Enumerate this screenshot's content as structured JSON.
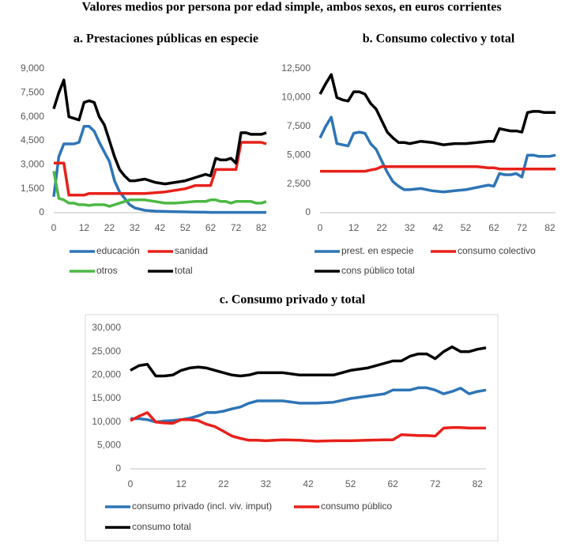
{
  "title": "Valores medios por persona por edad simple, ambos sexos, en euros corrientes",
  "chart_data": [
    {
      "type": "line",
      "title": "a. Prestaciones públicas en especie",
      "x": [
        0,
        2,
        4,
        6,
        8,
        10,
        12,
        14,
        16,
        18,
        20,
        22,
        24,
        26,
        28,
        30,
        32,
        36,
        40,
        44,
        48,
        52,
        56,
        60,
        62,
        64,
        66,
        68,
        70,
        72,
        74,
        76,
        78,
        80,
        82,
        84
      ],
      "xlim": [
        0,
        84
      ],
      "xticks": [
        0,
        12,
        22,
        32,
        42,
        52,
        62,
        72,
        82
      ],
      "ylim": [
        0,
        9000
      ],
      "yticks": [
        0,
        {
          "value": 1500,
          "label": "1,500"
        },
        {
          "value": 3000,
          "label": "3,000"
        },
        {
          "value": 4500,
          "label": "4,500"
        },
        {
          "value": 6000,
          "label": "6,000"
        },
        {
          "value": 7500,
          "label": "7,500"
        },
        {
          "value": 9000,
          "label": "9,000"
        }
      ],
      "grid": false,
      "series": [
        {
          "name": "educación",
          "color": "#2e75b6",
          "values": [
            1000,
            3500,
            4300,
            4300,
            4300,
            4400,
            5400,
            5400,
            5100,
            4400,
            3800,
            3200,
            2000,
            1300,
            900,
            500,
            300,
            150,
            100,
            80,
            60,
            50,
            40,
            30,
            20,
            20,
            20,
            20,
            20,
            20,
            20,
            20,
            20,
            20,
            20,
            20
          ]
        },
        {
          "name": "sanidad",
          "color": "#e8201a",
          "values": [
            3100,
            3100,
            3100,
            1100,
            1100,
            1100,
            1100,
            1200,
            1200,
            1200,
            1200,
            1200,
            1200,
            1200,
            1200,
            1200,
            1200,
            1200,
            1250,
            1300,
            1400,
            1500,
            1700,
            1700,
            1700,
            2700,
            2700,
            2700,
            2700,
            2700,
            4400,
            4400,
            4400,
            4400,
            4400,
            4300
          ]
        },
        {
          "name": "otros",
          "color": "#4cb944",
          "values": [
            2600,
            900,
            800,
            600,
            600,
            500,
            500,
            450,
            500,
            500,
            500,
            400,
            500,
            600,
            700,
            800,
            800,
            800,
            700,
            600,
            600,
            650,
            700,
            700,
            800,
            800,
            700,
            700,
            600,
            700,
            700,
            700,
            700,
            600,
            600,
            700
          ]
        },
        {
          "name": "total",
          "color": "#000000",
          "values": [
            6500,
            7500,
            8300,
            6000,
            5900,
            5800,
            6900,
            7000,
            6900,
            6000,
            5500,
            4500,
            3500,
            2700,
            2300,
            2000,
            2000,
            2100,
            1900,
            1800,
            1900,
            2000,
            2200,
            2400,
            2300,
            3400,
            3300,
            3300,
            3400,
            3100,
            5000,
            5000,
            4900,
            4900,
            4900,
            5000
          ]
        }
      ]
    },
    {
      "type": "line",
      "title": "b. Consumo colectivo y total",
      "x": [
        0,
        2,
        4,
        6,
        8,
        10,
        12,
        14,
        16,
        18,
        20,
        22,
        24,
        26,
        28,
        30,
        32,
        36,
        40,
        44,
        48,
        52,
        56,
        60,
        62,
        64,
        66,
        68,
        70,
        72,
        74,
        76,
        78,
        80,
        82,
        84
      ],
      "xlim": [
        0,
        84
      ],
      "xticks": [
        0,
        12,
        22,
        32,
        42,
        52,
        62,
        72,
        82
      ],
      "ylim": [
        0,
        12500
      ],
      "yticks": [
        0,
        {
          "value": 2500,
          "label": "2,500"
        },
        {
          "value": 5000,
          "label": "5,000"
        },
        {
          "value": 7500,
          "label": "7,500"
        },
        {
          "value": 10000,
          "label": "10,000"
        },
        {
          "value": 12500,
          "label": "12,500"
        }
      ],
      "grid": false,
      "series": [
        {
          "name": "prest. en especie",
          "color": "#2e75b6",
          "values": [
            6500,
            7500,
            8300,
            6000,
            5900,
            5800,
            6900,
            7000,
            6900,
            6000,
            5500,
            4500,
            3500,
            2700,
            2300,
            2000,
            2000,
            2100,
            1900,
            1800,
            1900,
            2000,
            2200,
            2400,
            2300,
            3400,
            3300,
            3300,
            3400,
            3100,
            5000,
            5000,
            4900,
            4900,
            4900,
            5000
          ]
        },
        {
          "name": "consumo colectivo",
          "color": "#e8201a",
          "values": [
            3600,
            3600,
            3600,
            3600,
            3600,
            3600,
            3600,
            3600,
            3600,
            3700,
            3800,
            4000,
            4000,
            4000,
            4000,
            4000,
            4000,
            4000,
            4000,
            4000,
            4000,
            4000,
            4000,
            3900,
            3900,
            3800,
            3800,
            3800,
            3800,
            3800,
            3800,
            3800,
            3800,
            3800,
            3800,
            3800
          ]
        },
        {
          "name": "cons público total",
          "color": "#000000",
          "values": [
            10300,
            11200,
            12000,
            10000,
            9800,
            9700,
            10500,
            10500,
            10300,
            9500,
            9000,
            8000,
            7000,
            6500,
            6100,
            6100,
            6000,
            6200,
            6100,
            5900,
            6000,
            6000,
            6100,
            6200,
            6200,
            7300,
            7200,
            7100,
            7100,
            7000,
            8700,
            8800,
            8800,
            8700,
            8700,
            8700
          ]
        }
      ]
    },
    {
      "type": "line",
      "title": "c. Consumo privado y total",
      "x": [
        0,
        2,
        4,
        6,
        8,
        10,
        12,
        14,
        16,
        18,
        20,
        22,
        24,
        26,
        28,
        30,
        32,
        36,
        40,
        44,
        48,
        52,
        56,
        60,
        62,
        64,
        66,
        68,
        70,
        72,
        74,
        76,
        78,
        80,
        82,
        84
      ],
      "xlim": [
        0,
        84
      ],
      "xticks": [
        0,
        12,
        22,
        32,
        42,
        52,
        62,
        72,
        82
      ],
      "ylim": [
        0,
        30000
      ],
      "yticks": [
        0,
        {
          "value": 5000,
          "label": "5,000"
        },
        {
          "value": 10000,
          "label": "10,000"
        },
        {
          "value": 15000,
          "label": "15,000"
        },
        {
          "value": 20000,
          "label": "20,000"
        },
        {
          "value": 25000,
          "label": "25,000"
        },
        {
          "value": 30000,
          "label": "30,000"
        }
      ],
      "grid": false,
      "series": [
        {
          "name": "consumo privado (incl. viv. imput)",
          "color": "#2e75b6",
          "values": [
            10700,
            10700,
            10500,
            10000,
            10200,
            10300,
            10500,
            10800,
            11300,
            12000,
            12000,
            12300,
            12800,
            13200,
            14000,
            14500,
            14500,
            14500,
            14000,
            14000,
            14200,
            15000,
            15500,
            16000,
            16800,
            16800,
            16800,
            17300,
            17300,
            16800,
            16000,
            16500,
            17200,
            16000,
            16500,
            16800
          ]
        },
        {
          "name": "consumo público",
          "color": "#e8201a",
          "values": [
            10300,
            11200,
            12000,
            10000,
            9800,
            9700,
            10500,
            10500,
            10300,
            9500,
            9000,
            8000,
            7000,
            6500,
            6100,
            6100,
            6000,
            6200,
            6100,
            5900,
            6000,
            6000,
            6100,
            6200,
            6200,
            7300,
            7200,
            7100,
            7100,
            7000,
            8700,
            8800,
            8800,
            8700,
            8700,
            8700
          ]
        },
        {
          "name": "consumo total",
          "color": "#000000",
          "values": [
            21000,
            22000,
            22300,
            19800,
            19800,
            20000,
            21000,
            21500,
            21700,
            21500,
            21000,
            20500,
            20000,
            19800,
            20000,
            20500,
            20500,
            20500,
            20000,
            20000,
            20000,
            21000,
            21500,
            22500,
            23000,
            23000,
            24000,
            24500,
            24500,
            23500,
            25000,
            26000,
            25000,
            25000,
            25500,
            25800
          ]
        }
      ]
    }
  ]
}
